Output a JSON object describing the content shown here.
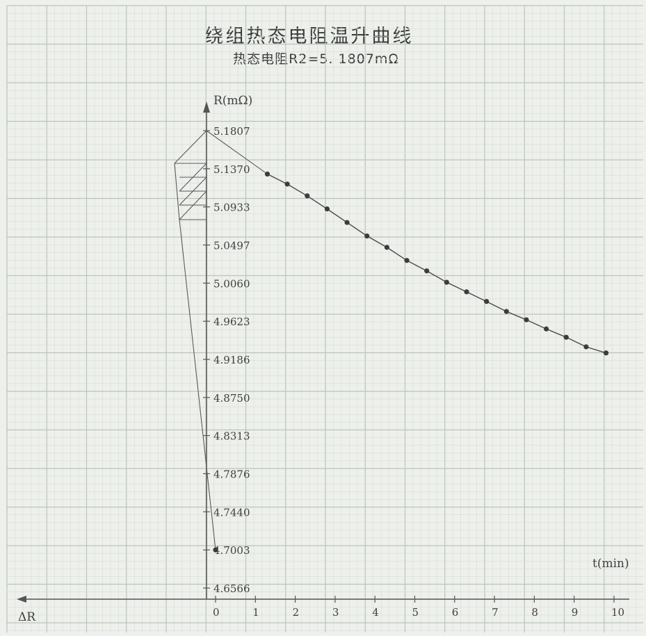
{
  "title": "绕组热态电阻温升曲线",
  "subtitle": "热态电阻R2=5. 1807mΩ",
  "chart_data": {
    "type": "line",
    "ylabel": "R(mΩ)",
    "xlabel": "t(min)",
    "delta_label": "ΔR",
    "x_ticks": [
      "0",
      "1",
      "2",
      "3",
      "4",
      "5",
      "6",
      "7",
      "8",
      "9",
      "10"
    ],
    "y_ticks": [
      "5.1807",
      "5.1370",
      "5.0933",
      "5.0497",
      "5.0060",
      "4.9623",
      "4.9186",
      "4.8750",
      "4.8313",
      "4.7876",
      "4.7440",
      "4.7003",
      "4.6566"
    ],
    "y_range": [
      4.6566,
      5.1807
    ],
    "x_range": [
      0,
      10
    ],
    "extrapolated_R2": 5.1807,
    "series": [
      {
        "x": [
          1.3,
          1.8,
          2.3,
          2.8,
          3.3,
          3.8,
          4.3,
          4.8,
          5.3,
          5.8,
          6.3,
          6.8,
          7.3,
          7.8,
          8.3,
          8.8,
          9.3,
          9.8
        ],
        "y": [
          5.131,
          5.1195,
          5.106,
          5.091,
          5.0755,
          5.06,
          5.047,
          5.032,
          5.02,
          5.007,
          4.996,
          4.985,
          4.9735,
          4.964,
          4.9535,
          4.944,
          4.933,
          4.926
        ]
      }
    ],
    "marker_point": {
      "x": 0,
      "y": 4.7003
    },
    "colors": {
      "line": "#4a4a4a",
      "grid_major": "#b7c5bd",
      "grid_minor": "#d4ddd7"
    }
  }
}
